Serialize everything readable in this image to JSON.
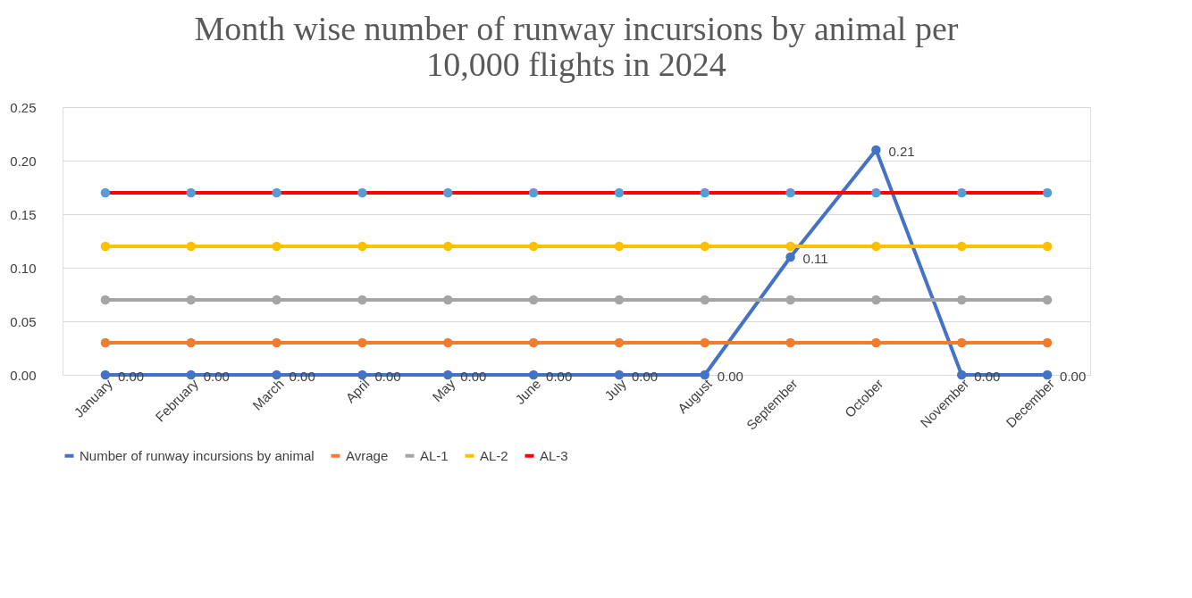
{
  "chart_data": {
    "type": "line",
    "title": "Month wise number of runway incursions by animal per 10,000 flights in 2024",
    "categories": [
      "January",
      "February",
      "March",
      "April",
      "May",
      "June",
      "July",
      "August",
      "September",
      "October",
      "November",
      "December"
    ],
    "series": [
      {
        "name": "Number of runway incursions by animal",
        "color": "#4472c4",
        "values": [
          0,
          0,
          0,
          0,
          0,
          0,
          0,
          0,
          0.11,
          0.21,
          0,
          0
        ],
        "value_labels": [
          "0.00",
          "0.00",
          "0.00",
          "0.00",
          "0.00",
          "0.00",
          "0.00",
          "0.00",
          "0.11",
          "0.21",
          "0.00",
          "0.00"
        ]
      },
      {
        "name": "Avrage",
        "color": "#ed7d31",
        "values": [
          0.03,
          0.03,
          0.03,
          0.03,
          0.03,
          0.03,
          0.03,
          0.03,
          0.03,
          0.03,
          0.03,
          0.03
        ]
      },
      {
        "name": "AL-1",
        "color": "#a5a5a5",
        "values": [
          0.07,
          0.07,
          0.07,
          0.07,
          0.07,
          0.07,
          0.07,
          0.07,
          0.07,
          0.07,
          0.07,
          0.07
        ]
      },
      {
        "name": "AL-2",
        "color": "#ffc000",
        "values": [
          0.12,
          0.12,
          0.12,
          0.12,
          0.12,
          0.12,
          0.12,
          0.12,
          0.12,
          0.12,
          0.12,
          0.12
        ]
      },
      {
        "name": "AL-3",
        "color": "#ff0000",
        "colors": [
          "#5b9bd5",
          "#5b9bd5",
          "#5b9bd5",
          "#5b9bd5",
          "#5b9bd5",
          "#5b9bd5",
          "#5b9bd5",
          "#5b9bd5",
          "#5b9bd5",
          "#5b9bd5",
          "#5b9bd5",
          "#5b9bd5"
        ],
        "values": [
          0.17,
          0.17,
          0.17,
          0.17,
          0.17,
          0.17,
          0.17,
          0.17,
          0.17,
          0.17,
          0.17,
          0.17
        ]
      }
    ],
    "ylim": [
      0,
      0.25
    ],
    "yticks": [
      {
        "value": 0,
        "label": "0.00"
      },
      {
        "value": 0.05,
        "label": "0.05"
      },
      {
        "value": 0.1,
        "label": "0.10"
      },
      {
        "value": 0.15,
        "label": "0.15"
      },
      {
        "value": 0.2,
        "label": "0.20"
      },
      {
        "value": 0.25,
        "label": "0.25"
      }
    ],
    "grid": "y",
    "legend": "bottom",
    "marker": "circle",
    "line_style": "solid"
  }
}
